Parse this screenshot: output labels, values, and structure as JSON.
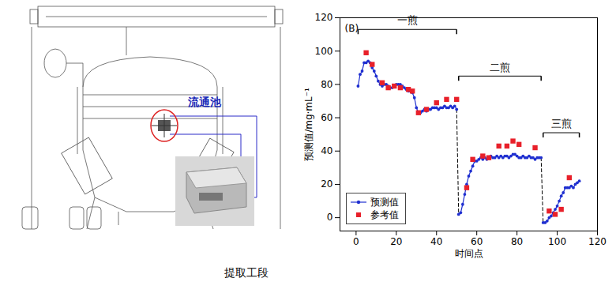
{
  "chart_data": {
    "type": "line",
    "title": "(B)",
    "x_label": "时间点",
    "y_label": "预测值/mg·mL⁻¹",
    "xlim": [
      -8,
      120
    ],
    "xticks": [
      0,
      20,
      40,
      60,
      80,
      100,
      120
    ],
    "ylim": [
      -8,
      120
    ],
    "yticks": [
      0,
      20,
      40,
      60,
      80,
      100,
      120
    ],
    "legend": "lower left",
    "series": [
      {
        "name": "预测值",
        "color": "#1f2fd0",
        "marker": "circle",
        "line_style": "solid",
        "type": "line",
        "x": [
          1,
          2,
          3,
          4,
          5,
          6,
          7,
          8,
          9,
          10,
          11,
          12,
          13,
          14,
          15,
          16,
          17,
          18,
          19,
          20,
          21,
          22,
          23,
          24,
          25,
          26,
          27,
          28,
          29,
          30,
          31,
          32,
          33,
          34,
          35,
          36,
          37,
          38,
          39,
          40,
          41,
          42,
          43,
          44,
          45,
          46,
          47,
          48,
          49,
          50,
          51,
          52,
          53,
          54,
          55,
          56,
          57,
          58,
          59,
          60,
          61,
          62,
          63,
          64,
          65,
          66,
          67,
          68,
          69,
          70,
          71,
          72,
          73,
          74,
          75,
          76,
          77,
          78,
          79,
          80,
          81,
          82,
          83,
          84,
          85,
          86,
          87,
          88,
          89,
          90,
          91,
          92,
          93,
          94,
          95,
          96,
          97,
          98,
          99,
          100,
          101,
          102,
          103,
          104,
          105,
          106,
          107,
          108,
          109,
          110,
          111
        ],
        "values": [
          79,
          86,
          88,
          93,
          93,
          94,
          93,
          90,
          88,
          85,
          82,
          80,
          79,
          80,
          80,
          79,
          78,
          78,
          79,
          80,
          80,
          80,
          79,
          78,
          77,
          76,
          76,
          75,
          72,
          66,
          63,
          63,
          64,
          65,
          64,
          65,
          65,
          66,
          66,
          66,
          65,
          66,
          66,
          67,
          66,
          66,
          67,
          66,
          67,
          65,
          2,
          3,
          8,
          14,
          20,
          25,
          28,
          31,
          34,
          34,
          35,
          36,
          35,
          36,
          35,
          36,
          37,
          36,
          36,
          37,
          36,
          37,
          36,
          37,
          37,
          36,
          37,
          38,
          38,
          37,
          36,
          36,
          37,
          36,
          36,
          37,
          36,
          36,
          35,
          36,
          36,
          36,
          -3,
          -3,
          -2,
          0,
          1,
          3,
          5,
          7,
          10,
          13,
          15,
          18,
          18,
          18,
          19,
          18,
          20,
          21,
          22
        ]
      },
      {
        "name": "参考值",
        "color": "#e8202a",
        "marker": "square",
        "type": "scatter",
        "x": [
          5,
          8,
          13,
          16,
          19,
          22,
          26,
          28,
          31,
          35,
          40,
          45,
          50,
          55,
          58,
          63,
          66,
          71,
          75,
          78,
          81,
          89,
          96,
          99,
          102,
          106
        ],
        "values": [
          99,
          92,
          81,
          78,
          79,
          78,
          77,
          76,
          63,
          65,
          69,
          71,
          71,
          18,
          35,
          37,
          36,
          43,
          43,
          46,
          44,
          42,
          4,
          2,
          5,
          24
        ]
      }
    ],
    "annotations": [
      {
        "text": "一煎",
        "x_start": 1,
        "x_end": 50,
        "y": 113
      },
      {
        "text": "二煎",
        "x_start": 51,
        "x_end": 92,
        "y": 85
      },
      {
        "text": "三煎",
        "x_start": 93,
        "x_end": 111,
        "y": 51
      }
    ]
  },
  "diagram": {
    "label": "流通池",
    "caption": "提取工段"
  }
}
